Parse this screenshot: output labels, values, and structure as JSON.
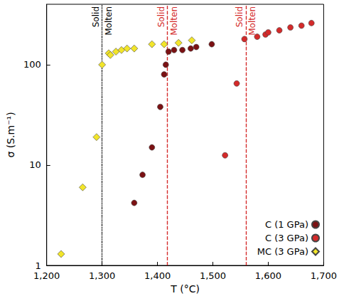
{
  "chart_data": {
    "type": "scatter",
    "x_label": "T (°C)",
    "y_label": "σ (S.m⁻¹)",
    "xlim": [
      1200,
      1700
    ],
    "xticks": [
      1200,
      1300,
      1400,
      1500,
      1600,
      1700
    ],
    "ylim": [
      1,
      400
    ],
    "yticks": [
      1,
      10,
      100
    ],
    "log": "y",
    "grid": false,
    "legend": "lower right",
    "series": [
      {
        "name": "C (1 GPa)",
        "color": "#7b1113",
        "marker": "circle",
        "x": [
          1358,
          1373,
          1390,
          1405,
          1412,
          1415,
          1420,
          1430,
          1445,
          1460,
          1470,
          1498
        ],
        "values": [
          4.2,
          8,
          15,
          38,
          80,
          100,
          135,
          140,
          140,
          145,
          150,
          160
        ]
      },
      {
        "name": "C (3 GPa)",
        "color": "#d42a2a",
        "marker": "circle",
        "x": [
          1522,
          1543,
          1557,
          1580,
          1595,
          1600,
          1620,
          1640,
          1660,
          1678
        ],
        "values": [
          12.5,
          65,
          180,
          190,
          200,
          210,
          220,
          235,
          245,
          260
        ]
      },
      {
        "name": "MC (3 GPa)",
        "color": "#f2e52a",
        "marker": "diamond",
        "x": [
          1226,
          1265,
          1290,
          1300,
          1312,
          1315,
          1325,
          1335,
          1345,
          1358,
          1390,
          1412,
          1438,
          1462
        ],
        "values": [
          1.3,
          6,
          19,
          100,
          130,
          125,
          135,
          140,
          145,
          145,
          160,
          160,
          165,
          175
        ]
      }
    ],
    "transitions": [
      {
        "x": 1300,
        "left": "Solid",
        "right": "Molten",
        "color": "#000000",
        "line_style": "dotted"
      },
      {
        "x": 1418,
        "left": "Solid",
        "right": "Molten",
        "color": "#d42a2a",
        "line_style": "dashed"
      },
      {
        "x": 1560,
        "left": "Solid",
        "right": "Molten",
        "color": "#d42a2a",
        "line_style": "dashed"
      }
    ]
  }
}
